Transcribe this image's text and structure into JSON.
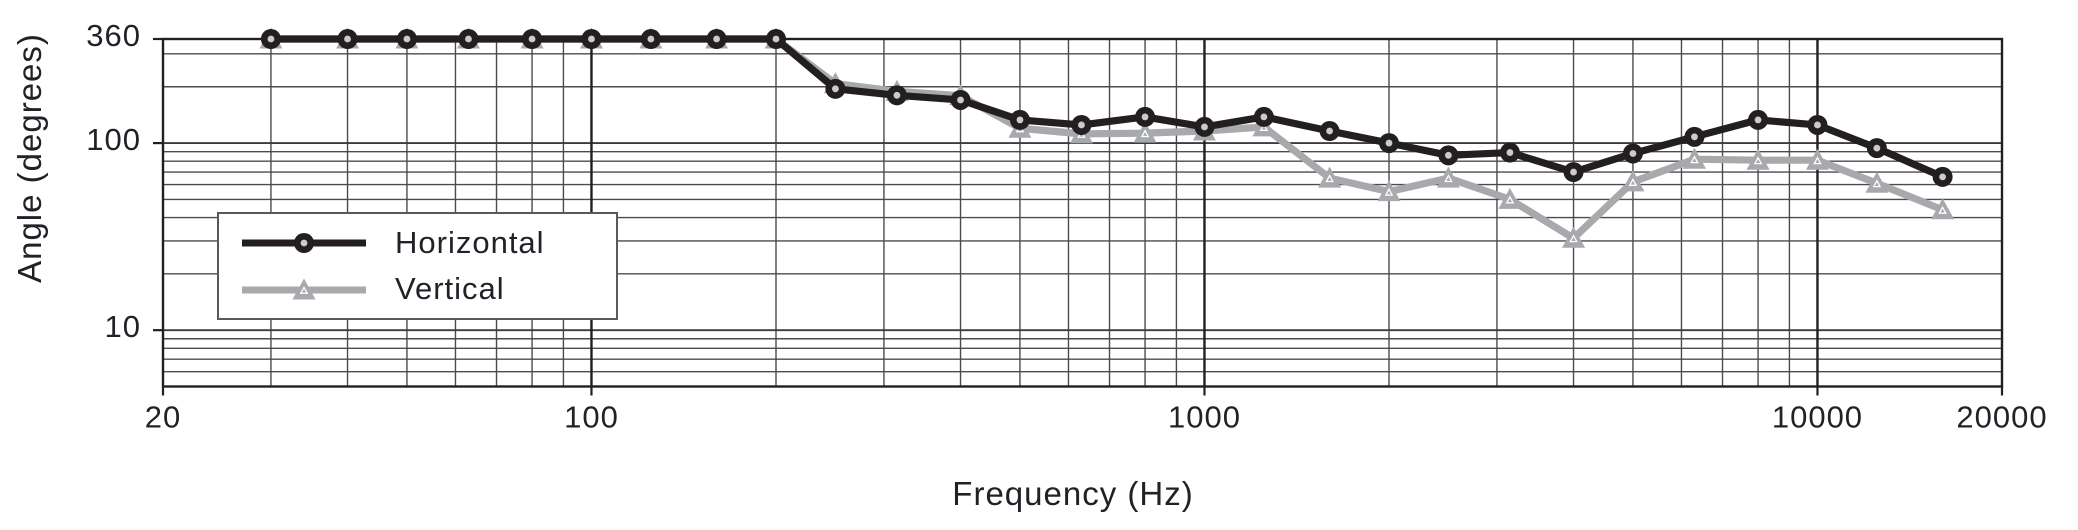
{
  "chart_data": {
    "type": "line",
    "title": "",
    "xlabel": "Frequency (Hz)",
    "ylabel": "Angle (degrees)",
    "grid": true,
    "x_axis": {
      "scale": "log",
      "min": 20,
      "max": 20000,
      "ticks": [
        {
          "value": 20,
          "label": "20"
        },
        {
          "value": 100,
          "label": "100"
        },
        {
          "value": 1000,
          "label": "1000"
        },
        {
          "value": 10000,
          "label": "10000"
        },
        {
          "value": 20000,
          "label": "20000"
        }
      ],
      "major_gridlines": [
        100,
        1000,
        10000
      ],
      "minor_gridlines": [
        30,
        40,
        50,
        60,
        70,
        80,
        90,
        200,
        300,
        400,
        500,
        600,
        700,
        800,
        900,
        2000,
        3000,
        4000,
        5000,
        6000,
        7000,
        8000,
        9000
      ]
    },
    "y_axis": {
      "scale": "log",
      "min": 5,
      "max": 360,
      "ticks": [
        {
          "value": 360,
          "label": "360"
        },
        {
          "value": 100,
          "label": "100"
        },
        {
          "value": 10,
          "label": "10"
        }
      ],
      "labeled_gridlines": [
        100,
        10
      ],
      "minor_gridlines": [
        300,
        200,
        90,
        80,
        70,
        60,
        50,
        40,
        30,
        20,
        9,
        8,
        7,
        6,
        5
      ]
    },
    "x": [
      30,
      40,
      50,
      63,
      80,
      100,
      125,
      160,
      200,
      250,
      315,
      400,
      500,
      630,
      800,
      1000,
      1250,
      1600,
      2000,
      2500,
      3150,
      4000,
      5000,
      6300,
      8000,
      10000,
      12500,
      16000
    ],
    "series": [
      {
        "name": "Horizontal",
        "marker": "circle",
        "color": "#231f20",
        "values": [
          360,
          360,
          360,
          360,
          360,
          360,
          360,
          360,
          360,
          195,
          180,
          170,
          133,
          125,
          138,
          122,
          138,
          116,
          100,
          86,
          89,
          70,
          88,
          108,
          133,
          125,
          94,
          66
        ]
      },
      {
        "name": "Vertical",
        "marker": "triangle",
        "color": "#a7a9ac",
        "values": [
          360,
          360,
          360,
          360,
          360,
          360,
          360,
          360,
          360,
          208,
          189,
          179,
          120,
          112,
          113,
          116,
          122,
          65,
          55,
          65,
          50,
          31,
          62,
          82,
          81,
          81,
          61,
          44
        ]
      }
    ],
    "legend": {
      "position": "inside-left",
      "entries": [
        "Horizontal",
        "Vertical"
      ]
    }
  },
  "colors": {
    "background": "#ffffff",
    "text": "#232127",
    "gridline": "#4b4b4d",
    "major_gridline": "#231f20",
    "labeled_y_gridline": "#3c3c3e",
    "legend_border": "#58595b",
    "marker_inner_dot": "#c9cbcd",
    "triangle_inner_outline": "#ffffff"
  }
}
